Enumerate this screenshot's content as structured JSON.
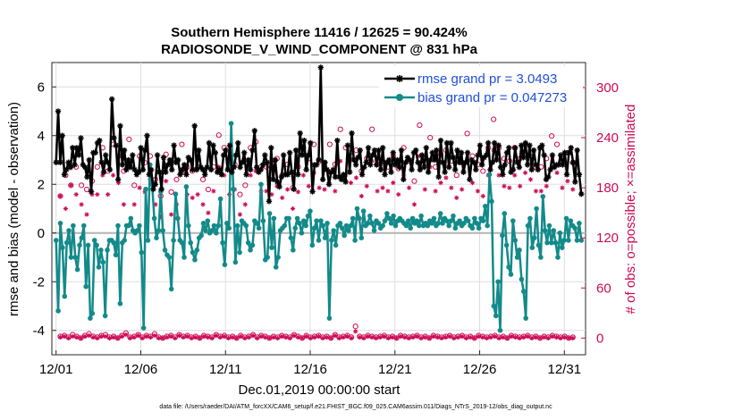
{
  "chart_data": {
    "type": "line",
    "title_line1": "Southern Hemisphere 11416 / 12625 = 90.424%",
    "title_line2": "RADIOSONDE_V_WIND_COMPONENT @ 831 hPa",
    "xlabel": "Dec.01,2019 00:00:00 start",
    "ylabel_left": "rmse and bias (model - observation)",
    "ylabel_right": "# of obs: o=possible; ×=assimilated",
    "footnote": "data file: /Users/raeder/DAI/ATM_forcXX/CAM6_setup/f.e21.FHIST_BGC.f09_025.CAM6assim.011/Diags_NTrS_2019-12/obs_diag_output.nc",
    "x_ticks": [
      "12/01",
      "12/06",
      "12/11",
      "12/16",
      "12/21",
      "12/26",
      "12/31"
    ],
    "x_tick_days": [
      0,
      5,
      10,
      15,
      20,
      25,
      30
    ],
    "xlim": [
      -0.25,
      31.25
    ],
    "ylim_left": [
      -5,
      7
    ],
    "y_ticks_left": [
      "-4",
      "-2",
      "0",
      "2",
      "4",
      "6"
    ],
    "ylim_right": [
      -20,
      330
    ],
    "y_ticks_right": [
      "0",
      "60",
      "120",
      "180",
      "240",
      "300"
    ],
    "colors": {
      "rmse": "#000000",
      "bias": "#138a8a",
      "obs": "#cc0a55",
      "zero_line": "#b4b4b4",
      "legend_text": "#1f4fd8"
    },
    "series": [
      {
        "name": "rmse grand pr = 3.0493",
        "values": [
          2.9,
          5.0,
          2.9,
          4.0,
          2.4,
          2.6,
          2.9,
          2.7,
          3.5,
          2.8,
          3.5,
          3.2,
          3.9,
          2.8,
          2.7,
          2.3,
          3.0,
          1.7,
          3.3,
          3.3,
          3.7,
          3.8,
          2.9,
          2.5,
          3.2,
          2.9,
          2.6,
          5.5,
          3.9,
          3.6,
          2.2,
          4.4,
          2.8,
          3.4,
          2.6,
          3.0,
          2.7,
          3.2,
          2.6,
          2.4,
          2.5,
          3.5,
          2.6,
          3.4,
          4.0,
          2.4,
          2.6,
          1.8,
          2.0,
          3.2,
          2.5,
          1.8,
          3.1,
          2.5,
          2.8,
          3.0,
          2.6,
          3.6,
          2.9,
          3.0,
          2.4,
          2.6,
          2.8,
          2.4,
          3.1,
          3.0,
          2.6,
          4.4,
          2.6,
          3.4,
          2.7,
          2.6,
          2.4,
          2.7,
          3.7,
          2.6,
          3.6,
          3.3,
          2.5,
          2.6,
          2.4,
          3.2,
          3.4,
          2.6,
          3.6,
          2.5,
          2.7,
          3.2,
          3.7,
          2.7,
          2.9,
          3.3,
          2.4,
          3.0,
          2.6,
          3.4,
          4.2,
          2.7,
          2.5,
          2.6,
          2.8,
          3.2,
          2.9,
          1.3,
          3.5,
          2.2,
          3.0,
          2.1,
          1.9,
          2.3,
          3.2,
          2.4,
          2.4,
          3.3,
          2.5,
          1.8,
          3.4,
          2.4,
          4.1,
          3.2,
          3.8,
          2.6,
          3.2,
          3.7,
          1.7,
          2.8,
          2.8,
          3.0,
          6.8,
          2.2,
          2.9,
          2.6,
          2.0,
          2.5,
          2.6,
          2.3,
          3.8,
          2.3,
          2.2,
          2.4,
          2.1,
          3.6,
          2.5,
          4.1,
          3.0,
          2.8,
          3.1,
          3.4,
          2.4,
          2.7,
          2.9,
          3.5,
          2.8,
          3.2,
          3.4,
          2.8,
          3.4,
          2.6,
          3.5,
          2.4,
          2.9,
          3.0,
          2.5,
          3.3,
          2.8,
          3.0,
          2.7,
          3.4,
          2.2,
          2.9,
          3.1,
          3.0,
          2.6,
          3.3,
          3.4,
          2.9,
          2.6,
          3.2,
          2.7,
          3.5,
          2.5,
          3.0,
          3.3,
          3.0,
          3.4,
          2.3,
          3.8,
          2.9,
          2.5,
          3.7,
          2.7,
          3.7,
          3.1,
          2.6,
          3.4,
          2.9,
          3.3,
          2.5,
          2.9,
          3.3,
          2.2,
          3.0,
          2.9,
          2.6,
          3.2,
          3.6,
          2.8,
          3.1,
          3.2,
          3.7,
          2.6,
          2.9,
          3.7,
          3.0,
          3.6,
          2.7,
          2.4,
          2.8,
          3.3,
          3.5,
          2.5,
          2.6,
          3.5,
          2.9,
          2.7,
          3.6,
          3.1,
          3.7,
          2.8,
          3.6,
          2.6,
          3.4,
          2.8,
          2.6,
          3.5,
          3.6,
          3.2,
          2.2,
          2.3,
          2.6,
          3.2,
          2.7,
          2.8,
          2.8,
          3.2,
          2.8,
          3.3,
          2.4,
          3.3,
          3.5,
          2.9,
          2.1,
          3.4,
          2.4,
          1.6
        ]
      },
      {
        "name": "bias grand pr = 0.047273",
        "values": [
          -0.3,
          -3.2,
          0.4,
          -0.6,
          -2.6,
          -0.4,
          0.1,
          -1.0,
          0.3,
          -1.0,
          -1.5,
          -0.5,
          -0.2,
          0.3,
          -2.2,
          -0.5,
          -3.5,
          -3.3,
          -0.3,
          -0.5,
          -1.4,
          -0.7,
          -1.2,
          -3.4,
          -0.7,
          -0.3,
          -0.3,
          -0.4,
          -0.9,
          0.3,
          -2.9,
          -0.4,
          -0.3,
          0.3,
          0.3,
          0.6,
          0.1,
          0.0,
          0.1,
          0.3,
          -0.8,
          -3.9,
          1.8,
          -0.3,
          2.8,
          2.0,
          0.6,
          -0.2,
          0.1,
          1.7,
          0.1,
          -0.7,
          -0.9,
          -1.0,
          -2.3,
          -0.3,
          1.6,
          0.6,
          -0.3,
          -0.4,
          -1.0,
          1.9,
          0.3,
          -0.4,
          -0.8,
          -1.1,
          -0.7,
          -0.2,
          -0.1,
          0.4,
          0.1,
          0.5,
          0.0,
          0.1,
          0.3,
          0.0,
          0.3,
          1.4,
          -0.4,
          -1.3,
          0.4,
          0.2,
          4.5,
          1.8,
          -1.2,
          0.3,
          -0.8,
          0.5,
          0.4,
          0.3,
          -0.4,
          -0.7,
          -0.5,
          0.5,
          0.4,
          0.2,
          2.0,
          0.5,
          -1.1,
          -1.0,
          0.8,
          -0.6,
          0.6,
          -1.4,
          -1.0,
          0.1,
          0.2,
          0.3,
          0.6,
          0.6,
          -0.2,
          -0.7,
          0.2,
          0.6,
          0.4,
          0.0,
          0.5,
          0.3,
          0.7,
          0.9,
          -0.5,
          0.2,
          0.5,
          -0.3,
          0.5,
          0.3,
          -0.2,
          0.4,
          -3.5,
          -0.3,
          0.1,
          -0.5,
          0.3,
          0.4,
          0.2,
          -0.1,
          0.3,
          0.1,
          0.3,
          0.6,
          -0.3,
          1.0,
          0.6,
          -0.2,
          0.9,
          0.3,
          0.4,
          0.7,
          0.4,
          0.1,
          0.5,
          0.4,
          0.2,
          0.3,
          0.5,
          0.8,
          0.6,
          0.4,
          0.7,
          0.3,
          0.5,
          0.6,
          0.5,
          0.4,
          0.3,
          0.5,
          0.2,
          0.6,
          0.4,
          0.5,
          0.3,
          0.7,
          0.3,
          0.4,
          0.3,
          0.5,
          0.4,
          0.6,
          0.3,
          0.4,
          0.8,
          0.4,
          0.6,
          0.5,
          0.3,
          0.5,
          0.7,
          0.2,
          0.4,
          0.5,
          0.3,
          0.4,
          0.6,
          0.5,
          0.3,
          0.2,
          0.6,
          0.4,
          0.2,
          0.6,
          0.5,
          1.1,
          0.3,
          2.4,
          1.3,
          -3.0,
          -3.4,
          -2.0,
          -4.0,
          -0.1,
          0.8,
          -0.5,
          -1.4,
          -1.7,
          0.5,
          -0.3,
          -1.0,
          -0.7,
          -1.9,
          -2.4,
          -3.5,
          0.3,
          0.6,
          -0.6,
          -0.2,
          1.0,
          -0.5,
          -1.0,
          1.5,
          0.1,
          -0.4,
          0.3,
          -0.4,
          0.1,
          -0.4,
          -1.0,
          0.0,
          -0.6,
          -0.3,
          0.6,
          -0.3,
          0.5,
          0.3,
          0.2,
          -0.3,
          0.4,
          -0.3
        ]
      }
    ],
    "obs_possible": [
      170,
      195,
      183,
      205,
      183,
      178,
      188,
      205,
      228,
      200,
      232,
      218,
      200,
      238,
      183,
      218,
      210,
      218,
      190,
      170,
      220,
      175,
      190,
      232,
      205,
      200,
      205,
      190,
      178,
      205,
      243,
      228,
      205,
      208,
      172,
      183,
      228,
      235,
      205,
      205,
      205,
      215,
      195,
      208,
      180,
      205,
      228,
      215,
      232,
      212,
      210,
      232,
      208,
      250,
      228,
      218,
      225,
      200,
      215,
      250,
      208,
      212,
      205,
      218,
      203,
      228,
      212,
      188,
      255,
      210,
      240,
      205,
      220,
      225,
      212,
      195,
      210,
      245,
      218,
      208,
      200,
      228,
      262,
      228,
      215,
      212,
      228,
      215,
      232,
      222,
      205,
      205,
      215,
      242,
      232,
      212,
      222,
      210
    ],
    "obs_assimilated": [
      170,
      155,
      183,
      172,
      160,
      148,
      172,
      172,
      195,
      172,
      195,
      186,
      160,
      205,
      160,
      180,
      175,
      190,
      160,
      145,
      188,
      148,
      160,
      198,
      172,
      168,
      172,
      160,
      150,
      176,
      205,
      195,
      172,
      178,
      148,
      160,
      195,
      200,
      176,
      176,
      172,
      182,
      168,
      178,
      155,
      175,
      195,
      182,
      198,
      180,
      178,
      198,
      176,
      212,
      195,
      186,
      192,
      170,
      182,
      212,
      176,
      180,
      176,
      186,
      172,
      195,
      180,
      160,
      218,
      178,
      205,
      176,
      186,
      192,
      180,
      168,
      178,
      210,
      186,
      176,
      170,
      195,
      225,
      195,
      182,
      180,
      195,
      182,
      198,
      190,
      176,
      176,
      182,
      205,
      198,
      180,
      188,
      178
    ],
    "obs_low_possible": [
      2,
      3,
      1,
      4,
      2,
      0,
      3,
      5,
      2,
      1,
      3,
      4,
      1,
      2,
      0,
      3,
      6,
      1,
      2,
      4,
      1,
      3,
      2,
      5,
      1,
      0,
      2,
      3,
      1,
      4,
      2,
      3,
      1,
      2,
      0,
      3,
      2,
      1,
      4,
      2,
      3,
      1,
      2,
      0,
      3,
      1,
      2,
      4,
      1,
      3,
      2,
      0,
      2,
      1,
      3,
      2,
      1,
      4,
      2,
      0,
      3,
      1,
      2,
      3,
      1,
      2,
      0,
      4,
      1,
      2,
      3,
      1,
      14,
      2,
      1,
      3,
      2,
      1,
      2,
      3,
      1,
      2,
      0,
      3,
      2,
      1,
      2,
      3,
      1,
      2,
      0,
      3,
      2,
      1,
      2,
      3,
      1,
      2,
      3,
      1,
      2,
      0,
      3,
      2,
      1,
      2,
      3,
      1,
      2,
      0,
      3,
      2,
      1,
      2,
      3,
      1,
      2,
      0,
      2,
      1,
      3,
      2,
      1,
      2,
      0,
      1
    ],
    "obs_low_assimilated": [
      1,
      2,
      0,
      2,
      1,
      0,
      2,
      3,
      1,
      0,
      2,
      2,
      0,
      1,
      0,
      2,
      4,
      0,
      1,
      3,
      0,
      2,
      1,
      3,
      0,
      0,
      1,
      2,
      0,
      3,
      1,
      2,
      0,
      1,
      0,
      2,
      1,
      0,
      3,
      1,
      2,
      0,
      1,
      0,
      2,
      0,
      1,
      3,
      0,
      2,
      1,
      0,
      1,
      0,
      2,
      1,
      0,
      3,
      1,
      0,
      2,
      0,
      1,
      2,
      0,
      1,
      0,
      3,
      0,
      1,
      2,
      0,
      8,
      1,
      0,
      2,
      1,
      0,
      1,
      2,
      0,
      1,
      0,
      2,
      1,
      0,
      1,
      2,
      0,
      1,
      0,
      2,
      1,
      0,
      1,
      2,
      0,
      1,
      2,
      0,
      1,
      0,
      2,
      1,
      0,
      1,
      2,
      0,
      1,
      0,
      2,
      1,
      0,
      1,
      2,
      0,
      1,
      0,
      1,
      0,
      2,
      1,
      0,
      1,
      0,
      0
    ]
  }
}
